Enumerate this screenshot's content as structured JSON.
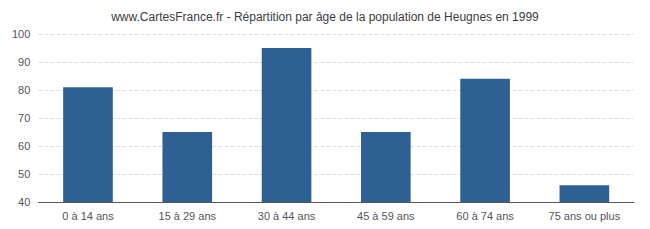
{
  "chart_data": {
    "type": "bar",
    "title": "www.CartesFrance.fr - Répartition par âge de la population de Heugnes en 1999",
    "categories": [
      "0 à 14 ans",
      "15 à 29 ans",
      "30 à 44 ans",
      "45 à 59 ans",
      "60 à 74 ans",
      "75 ans ou plus"
    ],
    "values": [
      81,
      65,
      95,
      65,
      84,
      46
    ],
    "color": "#2e6094",
    "ylim": [
      40,
      100
    ],
    "yticks": [
      40,
      50,
      60,
      70,
      80,
      90,
      100
    ],
    "grid": true
  }
}
